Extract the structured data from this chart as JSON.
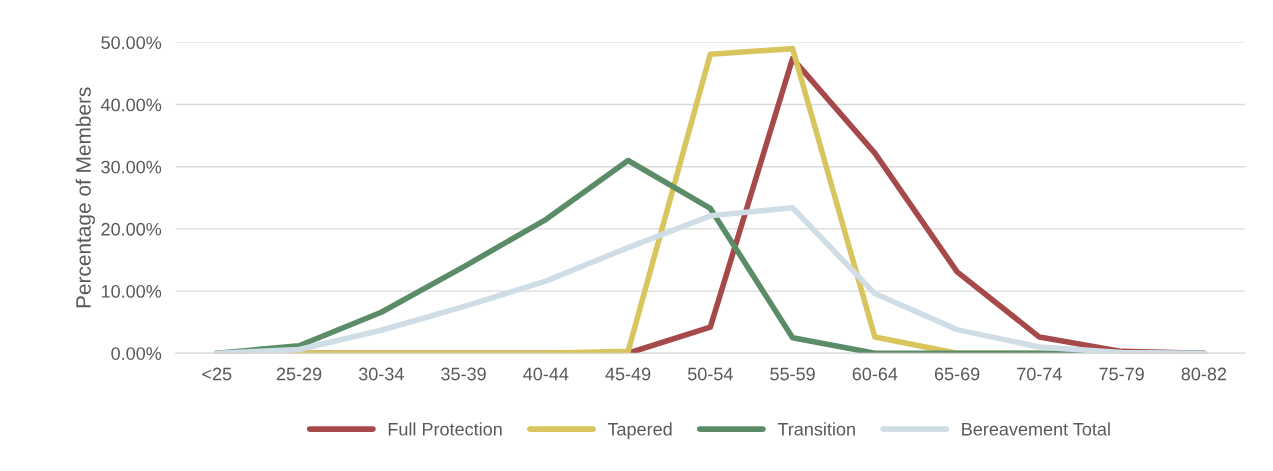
{
  "chart_data": {
    "type": "line",
    "ylabel": "Percentage of Members",
    "categories": [
      "<25",
      "25-29",
      "30-34",
      "35-39",
      "40-44",
      "45-49",
      "50-54",
      "55-59",
      "60-64",
      "65-69",
      "70-74",
      "75-79",
      "80-82"
    ],
    "series": [
      {
        "name": "Full Protection",
        "color": "#a5494b",
        "values": [
          0,
          0,
          0,
          0,
          0,
          0,
          4.2,
          47.4,
          32.2,
          13.1,
          2.6,
          0.3,
          0
        ]
      },
      {
        "name": "Tapered",
        "color": "#d9c55d",
        "values": [
          0,
          0,
          0,
          0,
          0,
          0.3,
          48.1,
          49.0,
          2.6,
          0,
          0,
          null,
          null
        ]
      },
      {
        "name": "Transition",
        "color": "#5b8c68",
        "values": [
          0,
          1.2,
          6.6,
          13.9,
          21.5,
          31.0,
          23.3,
          2.5,
          0,
          0,
          0,
          0,
          0
        ]
      },
      {
        "name": "Bereavement Total",
        "color": "#cfdde6",
        "values": [
          0,
          0.6,
          3.7,
          7.5,
          11.6,
          17.0,
          22.1,
          23.4,
          9.6,
          3.8,
          1.0,
          0.1,
          0
        ]
      }
    ],
    "ylim": [
      0,
      50
    ],
    "yticks": [
      {
        "value": 0,
        "label": "0.00%"
      },
      {
        "value": 10,
        "label": "10.00%"
      },
      {
        "value": 20,
        "label": "20.00%"
      },
      {
        "value": 30,
        "label": "30.00%"
      },
      {
        "value": 40,
        "label": "40.00%"
      },
      {
        "value": 50,
        "label": "50.00%"
      }
    ],
    "grid": "y",
    "legend": "bottom",
    "marker": "none",
    "line_style": "solid"
  }
}
